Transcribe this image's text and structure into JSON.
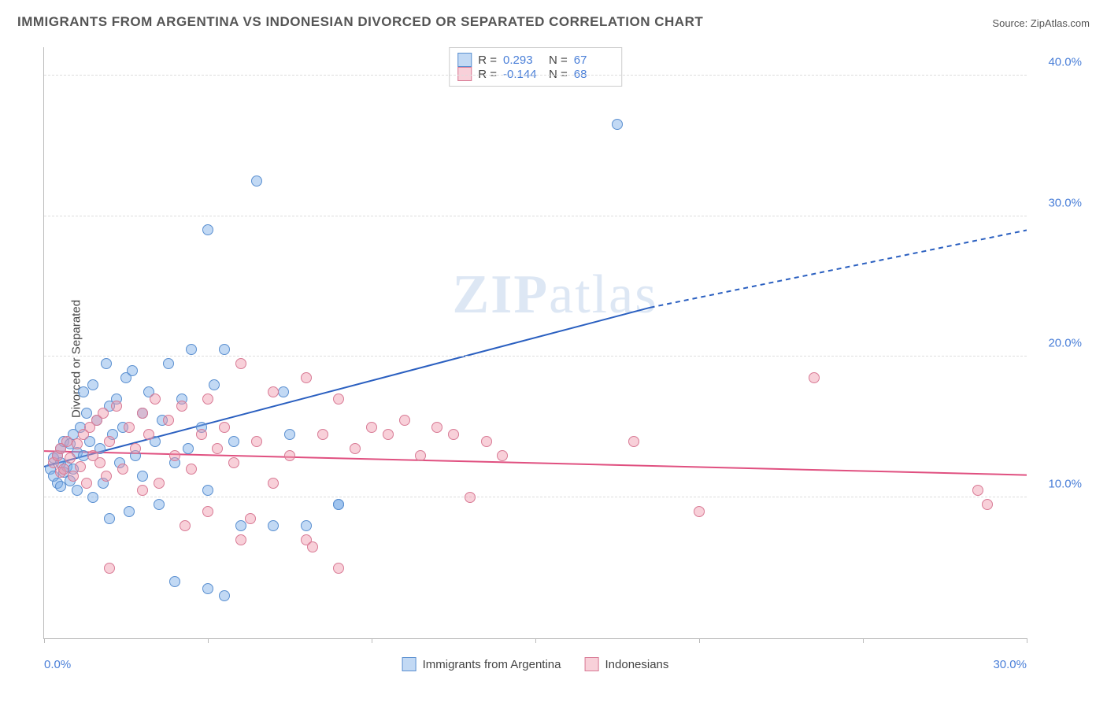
{
  "title": "IMMIGRANTS FROM ARGENTINA VS INDONESIAN DIVORCED OR SEPARATED CORRELATION CHART",
  "source_label": "Source:",
  "source_name": "ZipAtlas.com",
  "ylabel": "Divorced or Separated",
  "watermark_a": "ZIP",
  "watermark_b": "atlas",
  "chart": {
    "type": "scatter",
    "xlim": [
      0,
      30
    ],
    "ylim": [
      0,
      42
    ],
    "x_tick_positions": [
      0,
      5,
      10,
      15,
      20,
      25,
      30
    ],
    "x_tick_labels_shown": {
      "0": "0.0%",
      "30": "30.0%"
    },
    "y_ticks": [
      10,
      20,
      30,
      40
    ],
    "y_tick_labels": [
      "10.0%",
      "20.0%",
      "30.0%",
      "40.0%"
    ],
    "grid_color": "#dddddd",
    "axis_color": "#bbbbbb",
    "bg": "#ffffff",
    "tick_label_color": "#4a7fd8",
    "point_radius": 7,
    "point_stroke_width": 1,
    "series": [
      {
        "id": "argentina",
        "label": "Immigrants from Argentina",
        "fill": "rgba(120,170,230,0.45)",
        "stroke": "#5a8fd0",
        "R": "0.293",
        "N": "67",
        "trend": {
          "x1": 0,
          "y1": 12.2,
          "x2": 18.5,
          "y2": 23.5,
          "dash_from_x": 18.5,
          "x3": 30,
          "y3": 29.0,
          "color": "#2a5fc0",
          "width": 2
        },
        "points": [
          [
            0.2,
            12.0
          ],
          [
            0.3,
            12.8
          ],
          [
            0.3,
            11.5
          ],
          [
            0.4,
            13.0
          ],
          [
            0.4,
            11.0
          ],
          [
            0.5,
            12.5
          ],
          [
            0.5,
            13.5
          ],
          [
            0.6,
            11.8
          ],
          [
            0.6,
            14.0
          ],
          [
            0.7,
            12.2
          ],
          [
            0.8,
            13.8
          ],
          [
            0.8,
            11.2
          ],
          [
            0.9,
            14.5
          ],
          [
            0.9,
            12.0
          ],
          [
            1.0,
            13.2
          ],
          [
            1.0,
            10.5
          ],
          [
            1.1,
            15.0
          ],
          [
            1.2,
            17.5
          ],
          [
            1.2,
            13.0
          ],
          [
            1.3,
            16.0
          ],
          [
            1.4,
            14.0
          ],
          [
            1.5,
            18.0
          ],
          [
            1.5,
            10.0
          ],
          [
            1.6,
            15.5
          ],
          [
            1.7,
            13.5
          ],
          [
            1.8,
            11.0
          ],
          [
            1.9,
            19.5
          ],
          [
            2.0,
            16.5
          ],
          [
            2.0,
            8.5
          ],
          [
            2.1,
            14.5
          ],
          [
            2.2,
            17.0
          ],
          [
            2.3,
            12.5
          ],
          [
            2.4,
            15.0
          ],
          [
            2.5,
            18.5
          ],
          [
            2.6,
            9.0
          ],
          [
            2.7,
            19.0
          ],
          [
            2.8,
            13.0
          ],
          [
            3.0,
            16.0
          ],
          [
            3.0,
            11.5
          ],
          [
            3.2,
            17.5
          ],
          [
            3.4,
            14.0
          ],
          [
            3.5,
            9.5
          ],
          [
            3.6,
            15.5
          ],
          [
            3.8,
            19.5
          ],
          [
            4.0,
            12.5
          ],
          [
            4.0,
            4.0
          ],
          [
            4.2,
            17.0
          ],
          [
            4.4,
            13.5
          ],
          [
            4.5,
            20.5
          ],
          [
            4.8,
            15.0
          ],
          [
            5.0,
            3.5
          ],
          [
            5.0,
            10.5
          ],
          [
            5.2,
            18.0
          ],
          [
            5.5,
            20.5
          ],
          [
            5.5,
            3.0
          ],
          [
            5.8,
            14.0
          ],
          [
            6.0,
            8.0
          ],
          [
            6.5,
            32.5
          ],
          [
            7.0,
            8.0
          ],
          [
            7.3,
            17.5
          ],
          [
            7.5,
            14.5
          ],
          [
            8.0,
            8.0
          ],
          [
            9.0,
            9.5
          ],
          [
            9.0,
            9.5
          ],
          [
            5.0,
            29.0
          ],
          [
            17.5,
            36.5
          ],
          [
            0.5,
            10.8
          ]
        ]
      },
      {
        "id": "indonesians",
        "label": "Indonesians",
        "fill": "rgba(240,150,170,0.45)",
        "stroke": "#d87a95",
        "R": "-0.144",
        "N": "68",
        "trend": {
          "x1": 0,
          "y1": 13.3,
          "x2": 30,
          "y2": 11.6,
          "color": "#e05080",
          "width": 2
        },
        "points": [
          [
            0.3,
            12.5
          ],
          [
            0.4,
            13.0
          ],
          [
            0.5,
            11.8
          ],
          [
            0.5,
            13.5
          ],
          [
            0.6,
            12.0
          ],
          [
            0.7,
            14.0
          ],
          [
            0.8,
            12.8
          ],
          [
            0.9,
            11.5
          ],
          [
            1.0,
            13.8
          ],
          [
            1.1,
            12.2
          ],
          [
            1.2,
            14.5
          ],
          [
            1.3,
            11.0
          ],
          [
            1.4,
            15.0
          ],
          [
            1.5,
            13.0
          ],
          [
            1.6,
            15.5
          ],
          [
            1.7,
            12.5
          ],
          [
            1.8,
            16.0
          ],
          [
            1.9,
            11.5
          ],
          [
            2.0,
            14.0
          ],
          [
            2.2,
            16.5
          ],
          [
            2.4,
            12.0
          ],
          [
            2.6,
            15.0
          ],
          [
            2.8,
            13.5
          ],
          [
            3.0,
            16.0
          ],
          [
            3.0,
            10.5
          ],
          [
            3.2,
            14.5
          ],
          [
            3.4,
            17.0
          ],
          [
            3.5,
            11.0
          ],
          [
            3.8,
            15.5
          ],
          [
            4.0,
            13.0
          ],
          [
            4.2,
            16.5
          ],
          [
            4.5,
            12.0
          ],
          [
            4.8,
            14.5
          ],
          [
            5.0,
            17.0
          ],
          [
            5.0,
            9.0
          ],
          [
            5.3,
            13.5
          ],
          [
            5.5,
            15.0
          ],
          [
            5.8,
            12.5
          ],
          [
            6.0,
            19.5
          ],
          [
            6.0,
            7.0
          ],
          [
            6.5,
            14.0
          ],
          [
            7.0,
            17.5
          ],
          [
            7.0,
            11.0
          ],
          [
            7.5,
            13.0
          ],
          [
            8.0,
            18.5
          ],
          [
            8.0,
            7.0
          ],
          [
            8.2,
            6.5
          ],
          [
            8.5,
            14.5
          ],
          [
            9.0,
            17.0
          ],
          [
            9.0,
            5.0
          ],
          [
            9.5,
            13.5
          ],
          [
            10.0,
            15.0
          ],
          [
            10.5,
            14.5
          ],
          [
            11.0,
            15.5
          ],
          [
            11.5,
            13.0
          ],
          [
            12.0,
            15.0
          ],
          [
            12.5,
            14.5
          ],
          [
            13.0,
            10.0
          ],
          [
            13.5,
            14.0
          ],
          [
            14.0,
            13.0
          ],
          [
            18.0,
            14.0
          ],
          [
            20.0,
            9.0
          ],
          [
            23.5,
            18.5
          ],
          [
            28.5,
            10.5
          ],
          [
            28.8,
            9.5
          ],
          [
            6.3,
            8.5
          ],
          [
            4.3,
            8.0
          ],
          [
            2.0,
            5.0
          ]
        ]
      }
    ]
  },
  "legend_top": {
    "r_label": "R =",
    "n_label": "N ="
  }
}
